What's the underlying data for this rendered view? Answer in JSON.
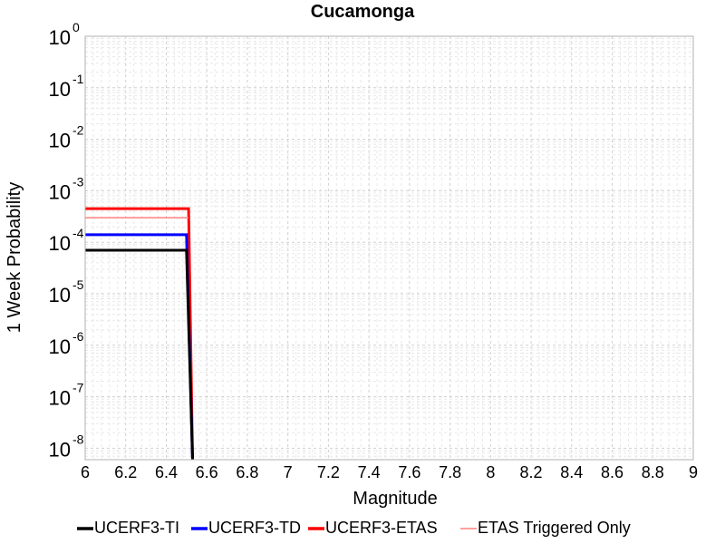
{
  "chart_data": {
    "type": "line",
    "title": "Cucamonga",
    "xlabel": "Magnitude",
    "ylabel": "1 Week Probability",
    "xlim": [
      6,
      9
    ],
    "ylim": [
      6e-09,
      1
    ],
    "yscale": "log",
    "grid": true,
    "legend_position": "bottom",
    "x_ticks": [
      "6",
      "6.2",
      "6.4",
      "6.6",
      "6.8",
      "7",
      "7.2",
      "7.4",
      "7.6",
      "7.8",
      "8",
      "8.2",
      "8.4",
      "8.6",
      "8.8",
      "9"
    ],
    "y_ticks": [
      {
        "base": "10",
        "exp": "0"
      },
      {
        "base": "10",
        "exp": "-1"
      },
      {
        "base": "10",
        "exp": "-2"
      },
      {
        "base": "10",
        "exp": "-3"
      },
      {
        "base": "10",
        "exp": "-4"
      },
      {
        "base": "10",
        "exp": "-5"
      },
      {
        "base": "10",
        "exp": "-6"
      },
      {
        "base": "10",
        "exp": "-7"
      },
      {
        "base": "10",
        "exp": "-8"
      }
    ],
    "series": [
      {
        "name": "UCERF3-TI",
        "color": "#000000",
        "width": 3,
        "x": [
          6,
          6.5,
          6.53
        ],
        "y": [
          7e-05,
          7e-05,
          6e-09
        ]
      },
      {
        "name": "UCERF3-TD",
        "color": "#0000ff",
        "width": 3,
        "x": [
          6,
          6.5,
          6.53
        ],
        "y": [
          0.00014,
          0.00014,
          6e-09
        ]
      },
      {
        "name": "UCERF3-ETAS",
        "color": "#ff0000",
        "width": 3,
        "x": [
          6,
          6.51,
          6.53
        ],
        "y": [
          0.00045,
          0.00045,
          6e-09
        ]
      },
      {
        "name": "ETAS Triggered Only",
        "color": "#ff8080",
        "width": 1.5,
        "x": [
          6,
          6.51
        ],
        "y": [
          0.0003,
          0.0003
        ]
      }
    ]
  }
}
